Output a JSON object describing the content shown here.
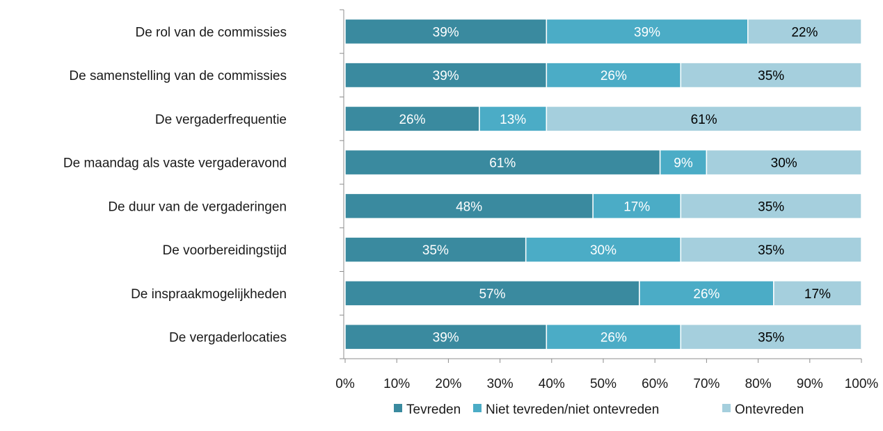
{
  "chart_data": {
    "type": "bar",
    "orientation": "horizontal",
    "stacked": true,
    "categories": [
      "De rol van de commissies",
      "De samenstelling van de commissies",
      "De vergaderfrequentie",
      "De maandag als vaste vergaderavond",
      "De duur van de vergaderingen",
      "De voorbereidingstijd",
      "De inspraakmogelijkheden",
      "De vergaderlocaties"
    ],
    "series": [
      {
        "name": "Tevreden",
        "color": "#3A8A9F",
        "label_color": "#ffffff",
        "values": [
          39,
          39,
          26,
          61,
          48,
          35,
          57,
          39
        ],
        "labels": [
          "39%",
          "39%",
          "26%",
          "61%",
          "48%",
          "35%",
          "57%",
          "39%"
        ]
      },
      {
        "name": "Niet tevreden/niet ontevreden",
        "color": "#4BACC6",
        "label_color": "#ffffff",
        "values": [
          39,
          26,
          13,
          9,
          17,
          30,
          26,
          26
        ],
        "labels": [
          "39%",
          "26%",
          "13%",
          "9%",
          "17%",
          "30%",
          "26%",
          "26%"
        ]
      },
      {
        "name": "Ontevreden",
        "color": "#A5CFDD",
        "label_color": "#000000",
        "values": [
          22,
          35,
          61,
          30,
          35,
          35,
          17,
          35
        ],
        "labels": [
          "22%",
          "35%",
          "61%",
          "30%",
          "35%",
          "35%",
          "17%",
          "35%"
        ]
      }
    ],
    "xlim": [
      0,
      100
    ],
    "x_ticks": [
      0,
      10,
      20,
      30,
      40,
      50,
      60,
      70,
      80,
      90,
      100
    ],
    "x_tick_labels": [
      "0%",
      "10%",
      "20%",
      "30%",
      "40%",
      "50%",
      "60%",
      "70%",
      "80%",
      "90%",
      "100%"
    ],
    "grid": false,
    "legend_position": "bottom",
    "title": "",
    "xlabel": "",
    "ylabel": ""
  }
}
